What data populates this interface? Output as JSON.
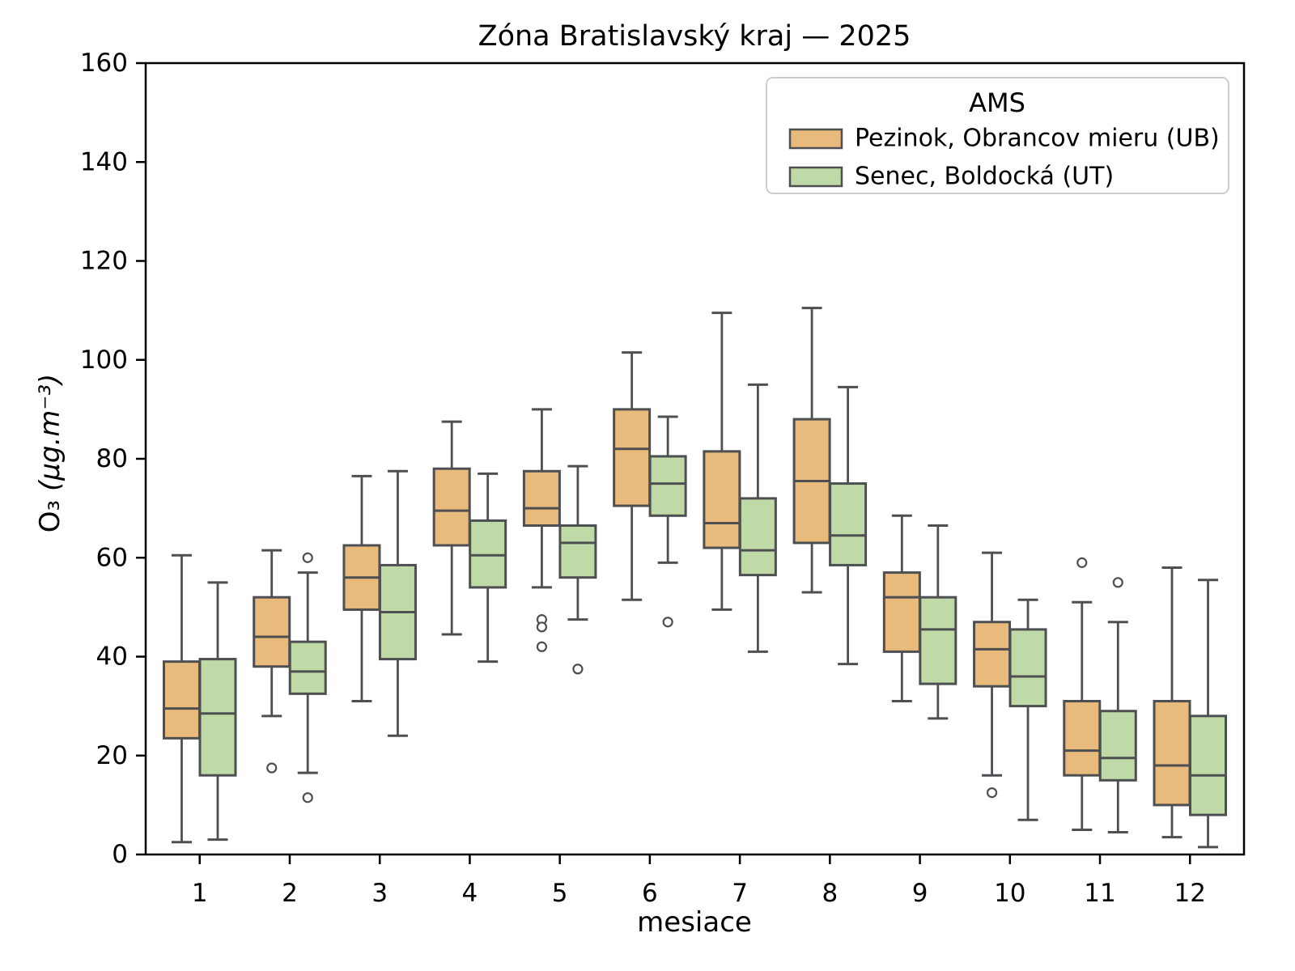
{
  "title": "Zóna Bratislavský kraj —  2025",
  "axes": {
    "xlabel": "mesiace",
    "ylabel": "O₃ (µg.m⁻³)",
    "ylabel_prefix": "O₃",
    "ylabel_unit": " (µg.m⁻³)",
    "x_ticks": [
      "1",
      "2",
      "3",
      "4",
      "5",
      "6",
      "7",
      "8",
      "9",
      "10",
      "11",
      "12"
    ],
    "y_ticks": [
      "0",
      "20",
      "40",
      "60",
      "80",
      "100",
      "120",
      "140",
      "160"
    ]
  },
  "legend": {
    "title": "AMS"
  },
  "colors": {
    "edge": "#4d4f52",
    "box_orange": "#e8ba7b",
    "box_green": "#bfdaa6",
    "legend_border": "#cccccc",
    "background": "#ffffff"
  },
  "chart_data": {
    "type": "boxplot",
    "title": "Zóna Bratislavský kraj —  2025",
    "xlabel": "mesiace",
    "ylabel": "O₃ (µg.m⁻³)",
    "categories": [
      1,
      2,
      3,
      4,
      5,
      6,
      7,
      8,
      9,
      10,
      11,
      12
    ],
    "ylim": [
      0,
      160
    ],
    "xlim": [
      0.4,
      12.6
    ],
    "grid": false,
    "legend_title": "AMS",
    "legend_position": "upper right",
    "series": [
      {
        "name": "Pezinok, Obrancov mieru (UB)",
        "color": "#e8ba7b",
        "boxes": [
          {
            "whislo": 2.5,
            "q1": 23.5,
            "med": 29.5,
            "q3": 39,
            "whishi": 60.5,
            "fliers": []
          },
          {
            "whislo": 28,
            "q1": 38,
            "med": 44,
            "q3": 52,
            "whishi": 61.5,
            "fliers": [
              17.5
            ]
          },
          {
            "whislo": 31,
            "q1": 49.5,
            "med": 56,
            "q3": 62.5,
            "whishi": 76.5,
            "fliers": []
          },
          {
            "whislo": 44.5,
            "q1": 62.5,
            "med": 69.5,
            "q3": 78,
            "whishi": 87.5,
            "fliers": []
          },
          {
            "whislo": 54,
            "q1": 66.5,
            "med": 70,
            "q3": 77.5,
            "whishi": 90,
            "fliers": [
              47.5,
              46,
              42
            ]
          },
          {
            "whislo": 51.5,
            "q1": 70.5,
            "med": 82,
            "q3": 90,
            "whishi": 101.5,
            "fliers": []
          },
          {
            "whislo": 49.5,
            "q1": 62,
            "med": 67,
            "q3": 81.5,
            "whishi": 109.5,
            "fliers": []
          },
          {
            "whislo": 53,
            "q1": 63,
            "med": 75.5,
            "q3": 88,
            "whishi": 110.5,
            "fliers": []
          },
          {
            "whislo": 31,
            "q1": 41,
            "med": 52,
            "q3": 57,
            "whishi": 68.5,
            "fliers": []
          },
          {
            "whislo": 16,
            "q1": 34,
            "med": 41.5,
            "q3": 47,
            "whishi": 61,
            "fliers": [
              12.5
            ]
          },
          {
            "whislo": 5,
            "q1": 16,
            "med": 21,
            "q3": 31,
            "whishi": 51,
            "fliers": [
              59
            ]
          },
          {
            "whislo": 3.5,
            "q1": 10,
            "med": 18,
            "q3": 31,
            "whishi": 58,
            "fliers": []
          }
        ]
      },
      {
        "name": "Senec, Boldocká (UT)",
        "color": "#bfdaa6",
        "boxes": [
          {
            "whislo": 3,
            "q1": 16,
            "med": 28.5,
            "q3": 39.5,
            "whishi": 55,
            "fliers": []
          },
          {
            "whislo": 16.5,
            "q1": 32.5,
            "med": 37,
            "q3": 43,
            "whishi": 57,
            "fliers": [
              60,
              11.5
            ]
          },
          {
            "whislo": 24,
            "q1": 39.5,
            "med": 49,
            "q3": 58.5,
            "whishi": 77.5,
            "fliers": []
          },
          {
            "whislo": 39,
            "q1": 54,
            "med": 60.5,
            "q3": 67.5,
            "whishi": 77,
            "fliers": []
          },
          {
            "whislo": 47.5,
            "q1": 56,
            "med": 63,
            "q3": 66.5,
            "whishi": 78.5,
            "fliers": [
              37.5
            ]
          },
          {
            "whislo": 59,
            "q1": 68.5,
            "med": 75,
            "q3": 80.5,
            "whishi": 88.5,
            "fliers": [
              47
            ]
          },
          {
            "whislo": 41,
            "q1": 56.5,
            "med": 61.5,
            "q3": 72,
            "whishi": 95,
            "fliers": []
          },
          {
            "whislo": 38.5,
            "q1": 58.5,
            "med": 64.5,
            "q3": 75,
            "whishi": 94.5,
            "fliers": []
          },
          {
            "whislo": 27.5,
            "q1": 34.5,
            "med": 45.5,
            "q3": 52,
            "whishi": 66.5,
            "fliers": []
          },
          {
            "whislo": 7,
            "q1": 30,
            "med": 36,
            "q3": 45.5,
            "whishi": 51.5,
            "fliers": []
          },
          {
            "whislo": 4.5,
            "q1": 15,
            "med": 19.5,
            "q3": 29,
            "whishi": 47,
            "fliers": [
              55
            ]
          },
          {
            "whislo": 1.5,
            "q1": 8,
            "med": 16,
            "q3": 28,
            "whishi": 55.5,
            "fliers": []
          }
        ]
      }
    ]
  }
}
